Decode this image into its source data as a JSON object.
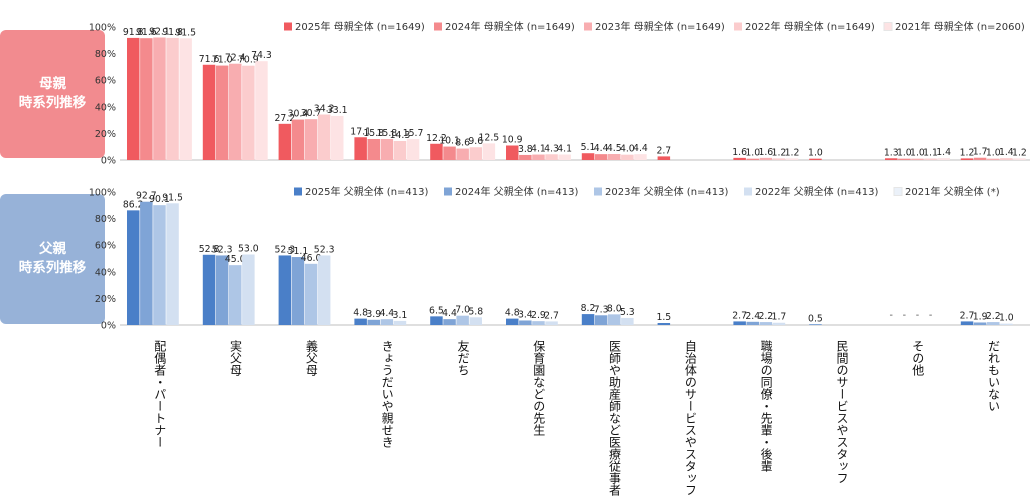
{
  "panels": {
    "mother": {
      "label_line1": "母親",
      "label_line2": "時系列推移"
    },
    "father": {
      "label_line1": "父親",
      "label_line2": "時系列推移"
    }
  },
  "chart_data": [
    {
      "type": "bar",
      "panel": "mother",
      "ylim": [
        0,
        100
      ],
      "yticks": [
        "0%",
        "20%",
        "40%",
        "60%",
        "80%",
        "100%"
      ],
      "legend_position": "top-right",
      "categories": [
        "配偶者・パートナー",
        "実父母",
        "義父母",
        "きょうだいや親せき",
        "友だち",
        "保育園などの先生",
        "医師や助産師など医療従事者",
        "自治体のサービスやスタッフ",
        "職場の同僚・先輩・後輩",
        "民間のサービスやスタッフ",
        "その他",
        "だれもいない"
      ],
      "series": [
        {
          "name": "2025年 母親全体 (n=1649)",
          "color": "#f05a5f",
          "values": [
            91.8,
            71.6,
            27.2,
            17.1,
            12.2,
            10.9,
            5.1,
            2.7,
            1.6,
            1.0,
            1.3,
            1.2
          ]
        },
        {
          "name": "2024年 母親全体 (n=1649)",
          "color": "#f48a8d",
          "values": [
            91.6,
            71.0,
            30.4,
            15.8,
            10.1,
            3.8,
            4.4,
            null,
            1.0,
            null,
            1.0,
            1.7
          ]
        },
        {
          "name": "2023年 母親全体 (n=1649)",
          "color": "#f8adb0",
          "values": [
            92.1,
            72.4,
            30.7,
            15.8,
            8.6,
            4.1,
            4.5,
            null,
            1.6,
            null,
            1.0,
            1.0
          ]
        },
        {
          "name": "2022年 母親全体 (n=1649)",
          "color": "#fbcccd",
          "values": [
            91.8,
            70.9,
            34.2,
            14.3,
            9.6,
            4.3,
            4.0,
            null,
            1.2,
            null,
            1.1,
            1.4
          ]
        },
        {
          "name": "2021年 母親全体 (n=2060)",
          "color": "#fde3e4",
          "values": [
            91.5,
            74.3,
            33.1,
            15.7,
            12.5,
            4.1,
            4.4,
            null,
            1.2,
            null,
            1.4,
            1.2
          ]
        }
      ]
    },
    {
      "type": "bar",
      "panel": "father",
      "ylim": [
        0,
        100
      ],
      "yticks": [
        "0%",
        "20%",
        "40%",
        "60%",
        "80%",
        "100%"
      ],
      "legend_position": "top-right",
      "categories": [
        "配偶者・パートナー",
        "実父母",
        "義父母",
        "きょうだいや親せき",
        "友だち",
        "保育園などの先生",
        "医師や助産師など医療従事者",
        "自治体のサービスやスタッフ",
        "職場の同僚・先輩・後輩",
        "民間のサービスやスタッフ",
        "その他",
        "だれもいない"
      ],
      "other_dash_labels": [
        "-",
        "-",
        "-",
        "-"
      ],
      "series": [
        {
          "name": "2025年 父親全体 (n=413)",
          "color": "#4a7fc8",
          "values": [
            86.2,
            52.8,
            52.3,
            4.8,
            6.5,
            4.8,
            8.2,
            1.5,
            2.7,
            0.5,
            null,
            2.7
          ]
        },
        {
          "name": "2024年 父親全体 (n=413)",
          "color": "#7fa4d6",
          "values": [
            92.7,
            52.3,
            51.1,
            3.9,
            4.4,
            3.4,
            7.3,
            null,
            2.4,
            null,
            null,
            1.9
          ]
        },
        {
          "name": "2023年 父親全体 (n=413)",
          "color": "#aec6e6",
          "values": [
            90.1,
            45.0,
            46.0,
            4.4,
            7.0,
            2.9,
            8.0,
            null,
            2.2,
            null,
            null,
            2.2
          ]
        },
        {
          "name": "2022年 父親全体 (n=413)",
          "color": "#d3e0f1",
          "values": [
            91.5,
            53.0,
            52.3,
            3.1,
            5.8,
            2.7,
            5.3,
            null,
            1.7,
            null,
            null,
            1.0
          ]
        },
        {
          "name": "2021年 父親全体 (*)",
          "color": "#ebf1f9",
          "values": [
            null,
            null,
            null,
            null,
            null,
            null,
            null,
            null,
            null,
            null,
            null,
            null
          ]
        }
      ]
    }
  ]
}
